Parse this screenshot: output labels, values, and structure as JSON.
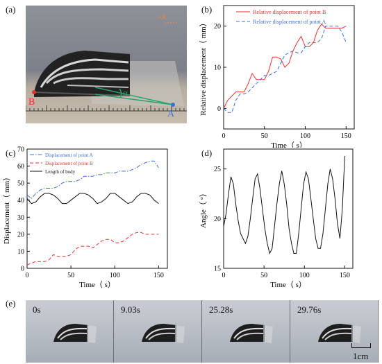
{
  "panel_labels": {
    "a": "(a)",
    "b": "(b)",
    "c": "(c)",
    "d": "(d)",
    "e": "(e)"
  },
  "photo_a": {
    "point_b": "B",
    "point_a": "A",
    "angle_symbol": "α",
    "corner_mark": "+X"
  },
  "strip": {
    "times": [
      "0s",
      "9.03s",
      "25.28s",
      "29.76s"
    ],
    "scale_label": "1cm"
  },
  "colors": {
    "point_b_red": "#e8312f",
    "point_a_blue": "#3c6fd6",
    "angle_green": "#2aa36b",
    "body_black": "#111111"
  },
  "chart_data": [
    {
      "id": "b",
      "type": "line",
      "xlabel": "Time（ s）",
      "ylabel": "Relative displacement（ mm）",
      "xlim": [
        0,
        160
      ],
      "ylim": [
        -5,
        25
      ],
      "xticks": [
        0,
        50,
        100,
        150
      ],
      "yticks": [
        0,
        10,
        20
      ],
      "legend_position": "top",
      "series": [
        {
          "name": "Relative displacement of point B",
          "color": "#e8312f",
          "dash": "solid",
          "x": [
            0,
            5,
            10,
            15,
            20,
            25,
            30,
            35,
            40,
            45,
            50,
            55,
            60,
            65,
            70,
            75,
            80,
            85,
            90,
            95,
            100,
            105,
            110,
            115,
            120,
            125,
            130,
            135,
            140,
            145,
            150
          ],
          "y": [
            0,
            2,
            3,
            4,
            4,
            4,
            6,
            8.5,
            7,
            7,
            7,
            9,
            12.5,
            12.5,
            12,
            10,
            11,
            14,
            16,
            17.5,
            15,
            15,
            16,
            19,
            20.5,
            19.5,
            19.5,
            19.5,
            19.5,
            19.5,
            20
          ]
        },
        {
          "name": "Relative displacement of point A",
          "color": "#3c6fd6",
          "dash": "dashed",
          "x": [
            0,
            5,
            10,
            15,
            20,
            25,
            30,
            35,
            40,
            45,
            50,
            55,
            60,
            65,
            70,
            75,
            80,
            85,
            90,
            95,
            100,
            105,
            110,
            115,
            120,
            125,
            130,
            135,
            140,
            145,
            150
          ],
          "y": [
            0,
            -1,
            -1,
            2,
            3.5,
            3.5,
            4,
            5,
            6,
            7,
            8,
            8,
            8.5,
            9,
            11,
            13,
            13.5,
            14,
            13.5,
            13.5,
            15,
            16,
            16,
            16,
            17,
            20,
            20,
            20,
            20,
            18.5,
            16
          ]
        }
      ]
    },
    {
      "id": "c",
      "type": "line",
      "xlabel": "Time（ s）",
      "ylabel": "Displacement（ mm）",
      "xlim": [
        0,
        160
      ],
      "ylim": [
        0,
        70
      ],
      "xticks": [
        0,
        50,
        100,
        150
      ],
      "yticks": [
        0,
        10,
        20,
        30,
        40,
        50,
        60,
        70
      ],
      "legend_position": "top-left",
      "series": [
        {
          "name": "Displacement of point A",
          "color": "#3c6fd6",
          "dash": "dashdot",
          "x": [
            0,
            5,
            10,
            15,
            20,
            25,
            30,
            35,
            40,
            45,
            50,
            55,
            60,
            65,
            70,
            75,
            80,
            85,
            90,
            95,
            100,
            105,
            110,
            115,
            120,
            125,
            130,
            135,
            140,
            145,
            150
          ],
          "y": [
            43,
            41,
            44,
            46,
            47,
            47,
            47,
            48,
            50,
            51,
            51,
            51,
            52,
            54,
            54,
            54,
            55,
            55,
            56,
            56,
            56,
            57,
            57,
            57,
            58,
            59,
            61,
            62,
            63,
            63,
            59
          ]
        },
        {
          "name": "Displacement of point B",
          "color": "#e8312f",
          "dash": "dashed",
          "x": [
            0,
            5,
            10,
            15,
            20,
            25,
            30,
            35,
            40,
            45,
            50,
            55,
            60,
            65,
            70,
            75,
            80,
            85,
            90,
            95,
            100,
            105,
            110,
            115,
            120,
            125,
            130,
            135,
            140,
            145,
            150
          ],
          "y": [
            2,
            3,
            4,
            4,
            4,
            5,
            8,
            7,
            7,
            7,
            8,
            11,
            13,
            13,
            13,
            12,
            14,
            16,
            17,
            17,
            15,
            15,
            16,
            18,
            20,
            21,
            21,
            20,
            20,
            20,
            20
          ]
        },
        {
          "name": "Length of body",
          "color": "#111111",
          "dash": "solid",
          "x": [
            0,
            5,
            10,
            15,
            20,
            25,
            30,
            35,
            40,
            45,
            50,
            55,
            60,
            65,
            70,
            75,
            80,
            85,
            90,
            95,
            100,
            105,
            110,
            115,
            120,
            125,
            130,
            135,
            140,
            145,
            150
          ],
          "y": [
            41,
            38,
            39,
            42,
            44,
            44,
            43,
            41,
            38,
            38,
            40,
            42,
            44,
            44,
            43,
            41,
            38,
            39,
            41,
            44,
            44,
            42,
            40,
            38,
            39,
            42,
            44,
            44,
            43,
            40,
            38
          ]
        }
      ]
    },
    {
      "id": "d",
      "type": "line",
      "xlabel": "Time（ s）",
      "ylabel": "Angle（ °）",
      "xlim": [
        0,
        160
      ],
      "ylim": [
        15,
        27
      ],
      "xticks": [
        0,
        50,
        100,
        150
      ],
      "yticks": [
        15,
        20,
        25
      ],
      "series": [
        {
          "color": "#111111",
          "dash": "solid",
          "x": [
            0,
            3,
            6,
            9,
            12,
            15,
            18,
            21,
            24,
            27,
            30,
            33,
            36,
            39,
            42,
            45,
            48,
            51,
            54,
            57,
            60,
            63,
            66,
            69,
            72,
            75,
            78,
            81,
            84,
            87,
            90,
            93,
            96,
            99,
            102,
            105,
            108,
            111,
            114,
            117,
            120,
            123,
            126,
            129,
            132,
            135,
            138,
            141,
            144,
            147,
            150
          ],
          "y": [
            19.2,
            20.5,
            22.5,
            24.2,
            23.5,
            21.5,
            19.8,
            18.5,
            18,
            17.5,
            18.2,
            20,
            22,
            24,
            24.5,
            23,
            21,
            19,
            17.5,
            16.5,
            17,
            19.2,
            21.5,
            23.5,
            24.8,
            23.5,
            21.5,
            19,
            17.5,
            16.5,
            16.5,
            18.5,
            21,
            23.5,
            24.7,
            24,
            22,
            20,
            18,
            17,
            17,
            18.5,
            21,
            23.5,
            25,
            24,
            22,
            19.5,
            18,
            21,
            26.3
          ]
        }
      ]
    }
  ]
}
